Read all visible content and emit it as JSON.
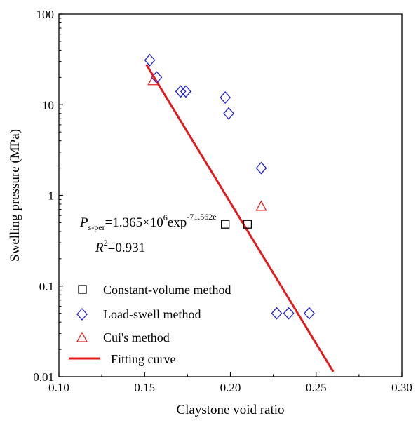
{
  "chart_data": {
    "type": "scatter",
    "xlabel": "Claystone void ratio",
    "ylabel": "Swelling pressure (MPa)",
    "xlim": [
      0.1,
      0.3
    ],
    "ylim": [
      0.01,
      100
    ],
    "yscale": "log",
    "x_ticks": [
      "0.10",
      "0.15",
      "0.20",
      "0.25",
      "0.30"
    ],
    "y_ticks": [
      "0.01",
      "0.1",
      "1",
      "10",
      "100"
    ],
    "grid": false,
    "legend_position": "bottom-left",
    "series": [
      {
        "name": "Constant-volume method",
        "marker": "square",
        "color": "#000000",
        "x": [
          0.197,
          0.21
        ],
        "y": [
          0.48,
          0.48
        ]
      },
      {
        "name": "Load-swell method",
        "marker": "diamond",
        "color": "#1f1fd6",
        "x": [
          0.153,
          0.157,
          0.171,
          0.174,
          0.197,
          0.199,
          0.218,
          0.227,
          0.234,
          0.246
        ],
        "y": [
          31,
          20,
          14,
          14,
          12,
          8,
          2.0,
          0.05,
          0.05,
          0.05
        ]
      },
      {
        "name": "Cui's method",
        "marker": "triangle",
        "color": "#e02020",
        "x": [
          0.155,
          0.218
        ],
        "y": [
          18.5,
          0.76
        ]
      }
    ],
    "fit": {
      "name": "Fitting curve",
      "color": "#e31a1c",
      "a": 1365000,
      "b": -71.562,
      "x_range": [
        0.151,
        0.26
      ]
    },
    "equation": {
      "p_symbol": "P",
      "p_sub": "s-per",
      "coef": "=1.365×10",
      "coef_exp": "6",
      "func": "exp",
      "exponent": "-71.562e",
      "r_symbol": "R",
      "r_exp": "2",
      "r_value": "=0.931"
    }
  }
}
